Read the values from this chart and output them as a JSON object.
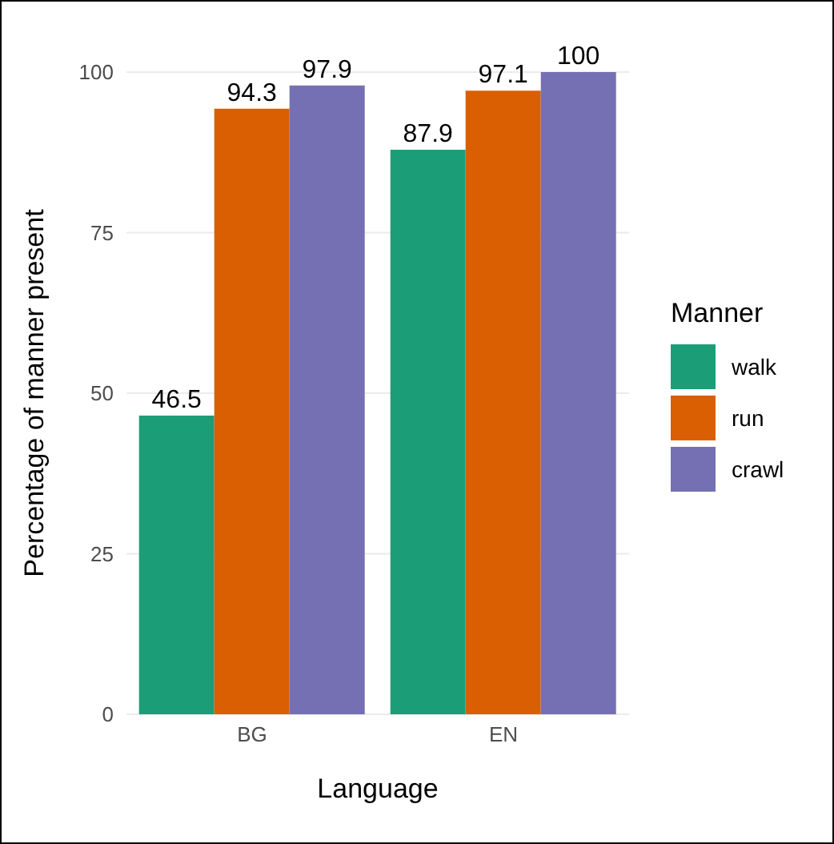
{
  "chart_data": {
    "type": "bar",
    "xlabel": "Language",
    "ylabel": "Percentage of manner present",
    "legend_title": "Manner",
    "categories": [
      "BG",
      "EN"
    ],
    "series": [
      {
        "name": "walk",
        "color": "#1b9e77",
        "values": [
          46.5,
          87.9
        ]
      },
      {
        "name": "run",
        "color": "#d95f02",
        "values": [
          94.3,
          97.1
        ]
      },
      {
        "name": "crawl",
        "color": "#7570b3",
        "values": [
          97.9,
          100
        ]
      }
    ],
    "ylim": [
      0,
      100
    ],
    "yticks": [
      0,
      25,
      50,
      75,
      100
    ],
    "grid": "y",
    "legend": "right",
    "data_labels": true
  }
}
